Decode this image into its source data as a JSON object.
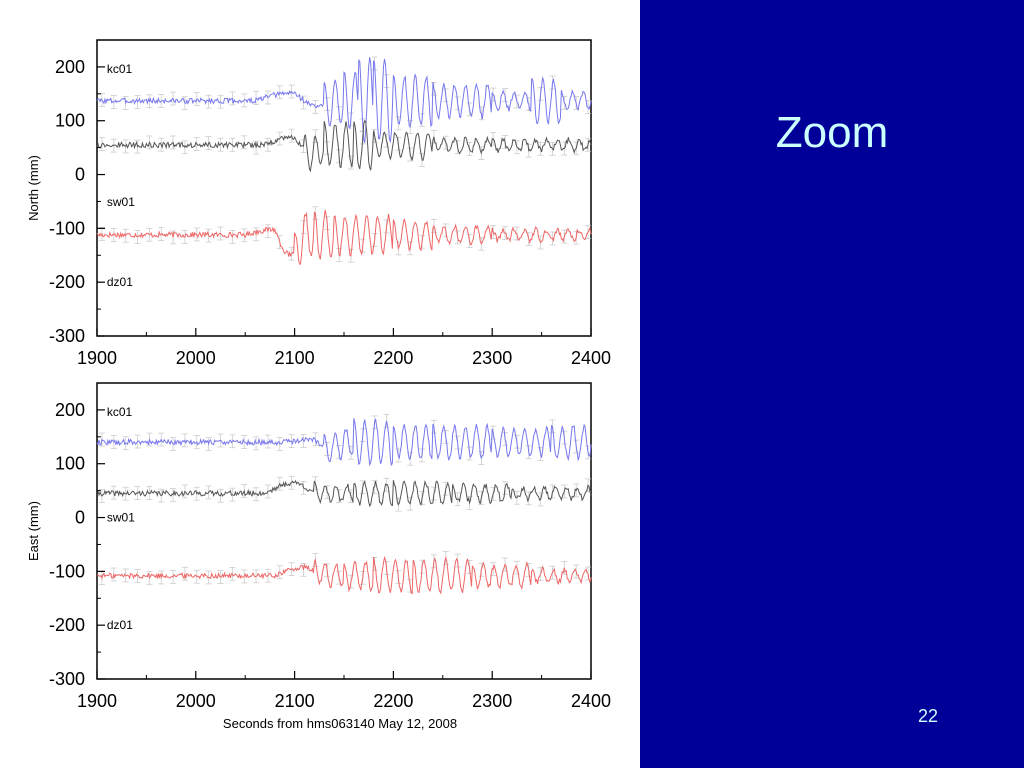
{
  "slide": {
    "title": "Zoom",
    "number": "22",
    "background_color": "#000099",
    "text_color": "#ccffff"
  },
  "chart_data": [
    {
      "type": "line",
      "ylabel": "North (mm)",
      "xlabel": "",
      "xlim": [
        1900,
        2400
      ],
      "ylim": [
        -300,
        250
      ],
      "xticks": [
        1900,
        2000,
        2100,
        2200,
        2300,
        2400
      ],
      "yticks": [
        -300,
        -200,
        -100,
        0,
        100,
        200
      ],
      "grid": false,
      "annotations": [
        {
          "text": "kc01",
          "x": 1910,
          "y": 196
        },
        {
          "text": "sw01",
          "x": 1910,
          "y": -51
        },
        {
          "text": "dz01",
          "x": 1910,
          "y": -200
        }
      ],
      "series": [
        {
          "name": "kc01",
          "color": "#7777ee",
          "baseline": 137,
          "bumps": [
            [
              2080,
              2120,
              15,
              -20
            ]
          ],
          "osc": [
            [
              2130,
              2150,
              40
            ],
            [
              2150,
              2165,
              55
            ],
            [
              2165,
              2180,
              80
            ],
            [
              2180,
              2200,
              75
            ],
            [
              2200,
              2240,
              45
            ],
            [
              2240,
              2300,
              30
            ],
            [
              2300,
              2340,
              15
            ],
            [
              2340,
              2370,
              40
            ],
            [
              2370,
              2400,
              15
            ]
          ]
        },
        {
          "name": "sw01",
          "color": "#555555",
          "baseline": 55,
          "bumps": [
            [
              2090,
              2110,
              15,
              -25
            ]
          ],
          "osc": [
            [
              2110,
              2130,
              30
            ],
            [
              2130,
              2160,
              40
            ],
            [
              2160,
              2180,
              45
            ],
            [
              2180,
              2240,
              25
            ],
            [
              2240,
              2300,
              12
            ],
            [
              2300,
              2400,
              10
            ]
          ]
        },
        {
          "name": "dz01",
          "color": "#ee6666",
          "baseline": -112,
          "bumps": [
            [
              2070,
              2090,
              10,
              -45
            ]
          ],
          "osc": [
            [
              2100,
              2120,
              40
            ],
            [
              2120,
              2140,
              45
            ],
            [
              2140,
              2200,
              35
            ],
            [
              2200,
              2240,
              25
            ],
            [
              2240,
              2300,
              15
            ],
            [
              2300,
              2400,
              10
            ]
          ]
        }
      ]
    },
    {
      "type": "line",
      "ylabel": "East (mm)",
      "xlabel": "Seconds from hms063140 May 12, 2008",
      "xlim": [
        1900,
        2400
      ],
      "ylim": [
        -300,
        250
      ],
      "xticks": [
        1900,
        2000,
        2100,
        2200,
        2300,
        2400
      ],
      "yticks": [
        -300,
        -200,
        -100,
        0,
        100,
        200
      ],
      "grid": false,
      "annotations": [
        {
          "text": "kc01",
          "x": 1910,
          "y": 196
        },
        {
          "text": "sw01",
          "x": 1910,
          "y": 0
        },
        {
          "text": "dz01",
          "x": 1910,
          "y": -200
        }
      ],
      "series": [
        {
          "name": "kc01",
          "color": "#7777ee",
          "baseline": 140,
          "bumps": [
            [
              2110,
              2130,
              5,
              -15
            ]
          ],
          "osc": [
            [
              2130,
              2160,
              25
            ],
            [
              2160,
              2200,
              40
            ],
            [
              2200,
              2240,
              30
            ],
            [
              2240,
              2300,
              30
            ],
            [
              2300,
              2360,
              25
            ],
            [
              2360,
              2400,
              30
            ]
          ]
        },
        {
          "name": "sw01",
          "color": "#555555",
          "baseline": 45,
          "bumps": [
            [
              2090,
              2115,
              20,
              -10
            ]
          ],
          "osc": [
            [
              2120,
              2160,
              15
            ],
            [
              2160,
              2200,
              20
            ],
            [
              2200,
              2260,
              20
            ],
            [
              2260,
              2320,
              15
            ],
            [
              2320,
              2400,
              10
            ]
          ]
        },
        {
          "name": "dz01",
          "color": "#ee6666",
          "baseline": -108,
          "bumps": [
            [
              2100,
              2120,
              15,
              -5
            ]
          ],
          "osc": [
            [
              2120,
              2150,
              20
            ],
            [
              2150,
              2180,
              25
            ],
            [
              2180,
              2220,
              30
            ],
            [
              2220,
              2280,
              30
            ],
            [
              2280,
              2340,
              20
            ],
            [
              2340,
              2400,
              12
            ]
          ]
        }
      ]
    }
  ]
}
